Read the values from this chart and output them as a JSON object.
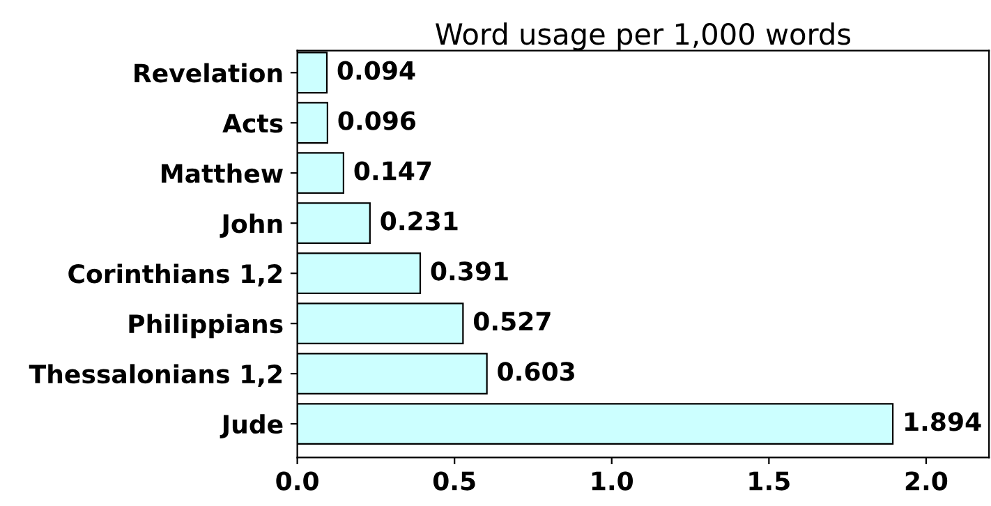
{
  "chart_data": {
    "type": "bar",
    "orientation": "horizontal",
    "title": "Word usage per 1,000 words",
    "categories": [
      "Revelation",
      "Acts",
      "Matthew",
      "John",
      "Corinthians 1,2",
      "Philippians",
      "Thessalonians 1,2",
      "Jude"
    ],
    "values": [
      0.094,
      0.096,
      0.147,
      0.231,
      0.391,
      0.527,
      0.603,
      1.894
    ],
    "color": "#ccffff",
    "data_labels": true,
    "xlim": [
      0,
      2.2
    ],
    "xticks": [
      {
        "value": 0,
        "label": "0.0"
      },
      {
        "value": 0.5,
        "label": "0.5"
      },
      {
        "value": 1,
        "label": "1.0"
      },
      {
        "value": 1.5,
        "label": "1.5"
      },
      {
        "value": 2,
        "label": "2.0"
      }
    ],
    "grid": false,
    "legend": false
  }
}
